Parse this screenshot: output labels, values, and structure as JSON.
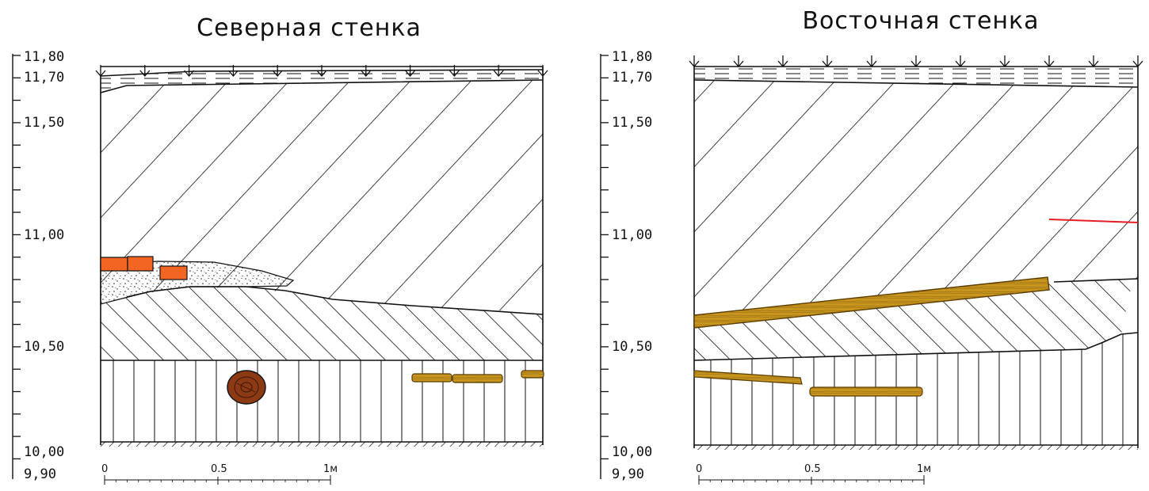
{
  "panels": [
    {
      "id": "north",
      "title": "Северная стенка",
      "elevations": [
        "11,80",
        "11,70",
        "11,50",
        "11,00",
        "10,50",
        "10,00",
        "9,90"
      ],
      "scale_labels": [
        "0",
        "0.5",
        "1м"
      ]
    },
    {
      "id": "east",
      "title": "Восточная стенка",
      "elevations": [
        "11,80",
        "11,70",
        "11,50",
        "11,00",
        "10,50",
        "10,00",
        "9,90"
      ],
      "scale_labels": [
        "0",
        "0.5",
        "1м"
      ]
    }
  ],
  "colors": {
    "brick": "#f26522",
    "wood": "#c8961e",
    "wood_dark": "#5a3c00",
    "log_cross_section": "#8b3a14",
    "marker_line": "#e41e26",
    "line": "#111111"
  }
}
